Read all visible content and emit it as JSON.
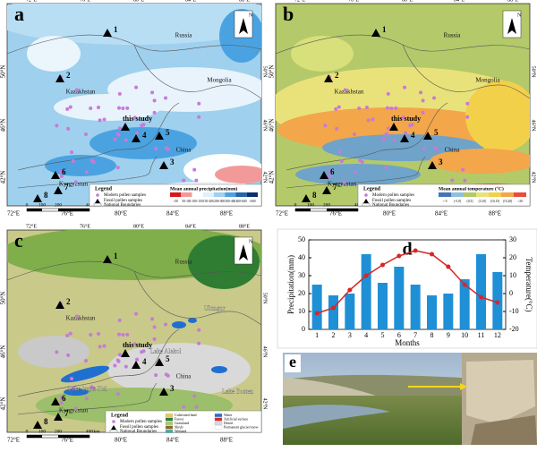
{
  "map": {
    "lon_labels": [
      "72°E",
      "76°E",
      "80°E",
      "84°E",
      "88°E"
    ],
    "lat_labels": [
      "50°N",
      "46°N",
      "42°N"
    ],
    "north": "N",
    "countries": [
      "Russia",
      "Mongolia",
      "Kazakhstan",
      "China",
      "Kyrgyzstan"
    ],
    "sites": [
      "1",
      "2",
      "3",
      "4",
      "5",
      "6",
      "7",
      "8"
    ],
    "this_study": "this study",
    "legend_title": "Legend",
    "legend_items": [
      "Modern pollen samples",
      "Fossil pollen samples",
      "National Boundaries"
    ],
    "scale": [
      "0",
      "100",
      "200",
      "400",
      "km"
    ]
  },
  "panel_a": {
    "letter": "a",
    "legend_title": "Mean annual precipitation(mm)",
    "classes": [
      "<50",
      "50-100",
      "100-150",
      "150-200",
      "200-300",
      "300-400",
      "400-600",
      ">600"
    ]
  },
  "panel_b": {
    "letter": "b",
    "legend_title": "Mean annual temperature (°C)",
    "classes": [
      "<-5",
      "(-5,0]",
      "(0,5]",
      "(5,10]",
      "(10,15]",
      "(15,20]",
      ">20"
    ]
  },
  "panel_c": {
    "letter": "c",
    "lakes": [
      "Lake Alakol",
      "Ulungur",
      "Lake Issyk-Kul",
      "Lake Bosten"
    ],
    "landcover": [
      "Cultivated land",
      "Forest",
      "Grassland",
      "Shrub",
      "Wetland",
      "Water",
      "Artificial surface",
      "Desert",
      "Permanent glacier/snow"
    ]
  },
  "chart_data": {
    "type": "bar",
    "panel_label": "d",
    "xlabel": "Months",
    "ylabel": "Precipitation(mm)",
    "y2label": "Temperature(°C)",
    "categories": [
      "1",
      "2",
      "3",
      "4",
      "5",
      "6",
      "7",
      "8",
      "9",
      "10",
      "11",
      "12"
    ],
    "series": [
      {
        "type": "bar",
        "color": "#1f8fd6",
        "values": [
          25,
          19,
          20,
          42,
          26,
          35,
          25,
          19,
          20,
          28,
          42,
          32
        ]
      },
      {
        "type": "line",
        "axis": "y2",
        "color": "#d62728",
        "values": [
          -11,
          -8,
          2,
          10,
          16,
          21,
          24,
          22,
          15,
          5,
          -2,
          -5
        ]
      }
    ],
    "ylim": [
      0,
      50
    ],
    "yticks": [
      0,
      10,
      20,
      30,
      40,
      50
    ],
    "y2lim": [
      -20,
      30
    ],
    "y2ticks": [
      -20,
      -10,
      0,
      10,
      20,
      30
    ]
  },
  "panel_e": {
    "letter": "e"
  }
}
